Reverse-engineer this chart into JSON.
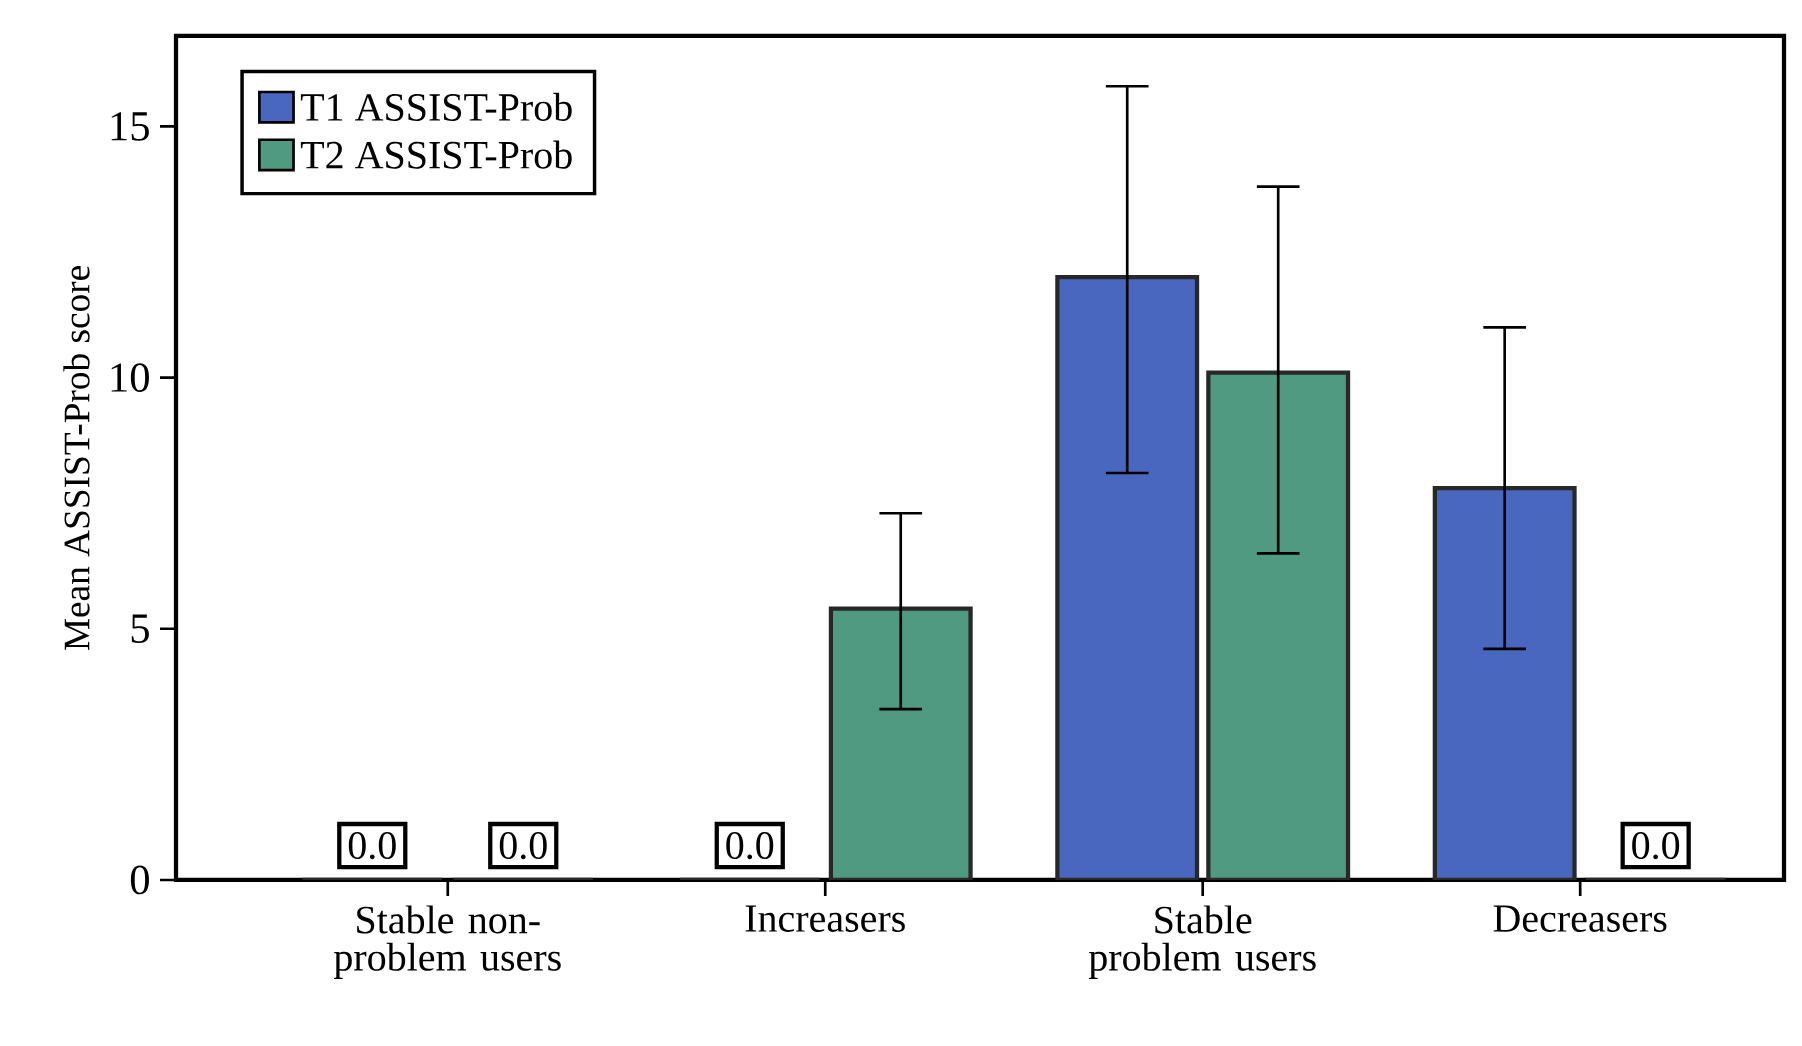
{
  "chart_data": {
    "type": "bar",
    "ylabel": "Mean ASSIST-Prob score",
    "categories": [
      "Stable non-problem users",
      "Increasers",
      "Stable problem users",
      "Decreasers"
    ],
    "series": [
      {
        "name": "T1 ASSIST-Prob",
        "color": "#4a67c0",
        "values": [
          0,
          0,
          12.0,
          7.8
        ],
        "errors": [
          null,
          null,
          [
            8.1,
            15.8
          ],
          [
            4.6,
            11.0
          ]
        ],
        "value_labels": [
          "0.0",
          "0.0",
          null,
          null
        ]
      },
      {
        "name": "T2 ASSIST-Prob",
        "color": "#4f9a80",
        "values": [
          0,
          5.4,
          10.1,
          0
        ],
        "errors": [
          null,
          [
            3.4,
            7.3
          ],
          [
            6.5,
            13.8
          ],
          null
        ],
        "value_labels": [
          "0.0",
          null,
          null,
          "0.0"
        ]
      }
    ],
    "ylim": [
      0,
      16.8
    ],
    "yticks": [
      0,
      5,
      10,
      15
    ],
    "legend": "top left",
    "grid": false
  }
}
